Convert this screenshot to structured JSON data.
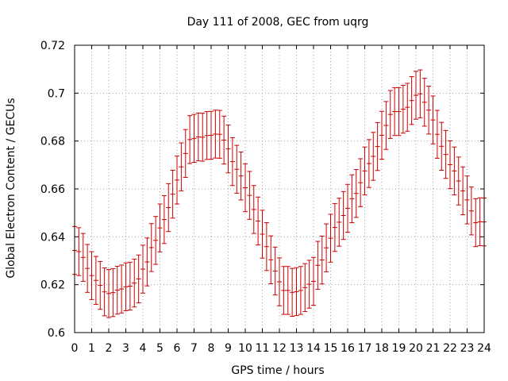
{
  "chart_data": {
    "type": "errorbar",
    "title": "Day 111 of 2008, GEC from uqrg",
    "xlabel": "GPS time / hours",
    "ylabel": "Global Electron Content / GECUs",
    "xlim": [
      0,
      24
    ],
    "ylim": [
      0.6,
      0.72
    ],
    "xticks": [
      "0",
      "1",
      "2",
      "3",
      "4",
      "5",
      "6",
      "7",
      "8",
      "9",
      "10",
      "11",
      "12",
      "13",
      "14",
      "15",
      "16",
      "17",
      "18",
      "19",
      "20",
      "21",
      "22",
      "23",
      "24"
    ],
    "yticks": [
      "0.6",
      "0.62",
      "0.64",
      "0.66",
      "0.68",
      "0.7",
      "0.72"
    ],
    "grid": true,
    "legend": "none",
    "series": [
      {
        "color": "#cc0000",
        "x": [
          0,
          0.25,
          0.5,
          0.75,
          1,
          1.25,
          1.5,
          1.75,
          2,
          2.25,
          2.5,
          2.75,
          3,
          3.25,
          3.5,
          3.75,
          4,
          4.25,
          4.5,
          4.75,
          5,
          5.25,
          5.5,
          5.75,
          6,
          6.25,
          6.5,
          6.75,
          7,
          7.25,
          7.5,
          7.75,
          8,
          8.25,
          8.5,
          8.75,
          9,
          9.25,
          9.5,
          9.75,
          10,
          10.25,
          10.5,
          10.75,
          11,
          11.25,
          11.5,
          11.75,
          12,
          12.25,
          12.5,
          12.75,
          13,
          13.25,
          13.5,
          13.75,
          14,
          14.25,
          14.5,
          14.75,
          15,
          15.25,
          15.5,
          15.75,
          16,
          16.25,
          16.5,
          16.75,
          17,
          17.25,
          17.5,
          17.75,
          18,
          18.25,
          18.5,
          18.75,
          19,
          19.25,
          19.5,
          19.75,
          20,
          20.25,
          20.5,
          20.75,
          21,
          21.25,
          21.5,
          21.75,
          22,
          22.25,
          22.5,
          22.75,
          23,
          23.25,
          23.5,
          23.75,
          24
        ],
        "y": [
          0.6343,
          0.6338,
          0.6314,
          0.6268,
          0.6238,
          0.6218,
          0.6197,
          0.617,
          0.6163,
          0.6167,
          0.6177,
          0.6182,
          0.6191,
          0.6194,
          0.6207,
          0.6224,
          0.6265,
          0.6295,
          0.6355,
          0.6385,
          0.6437,
          0.6472,
          0.6522,
          0.6578,
          0.6637,
          0.6692,
          0.6748,
          0.6806,
          0.6811,
          0.6817,
          0.6816,
          0.6823,
          0.6824,
          0.6829,
          0.6828,
          0.6804,
          0.6767,
          0.6714,
          0.6682,
          0.6654,
          0.6605,
          0.6573,
          0.6514,
          0.6466,
          0.6411,
          0.6359,
          0.6304,
          0.6257,
          0.6212,
          0.6176,
          0.6176,
          0.6168,
          0.6171,
          0.6176,
          0.6188,
          0.6202,
          0.6214,
          0.6281,
          0.6303,
          0.6354,
          0.6394,
          0.6439,
          0.6461,
          0.6489,
          0.6519,
          0.6559,
          0.6581,
          0.6626,
          0.6675,
          0.6706,
          0.6736,
          0.6777,
          0.6824,
          0.6865,
          0.6911,
          0.6923,
          0.6923,
          0.6933,
          0.6941,
          0.6969,
          0.6991,
          0.6997,
          0.6962,
          0.6929,
          0.6888,
          0.6828,
          0.6778,
          0.6744,
          0.6701,
          0.6675,
          0.6633,
          0.6592,
          0.6554,
          0.6508,
          0.6459,
          0.6463,
          0.6462
        ],
        "err": 0.01
      }
    ]
  }
}
